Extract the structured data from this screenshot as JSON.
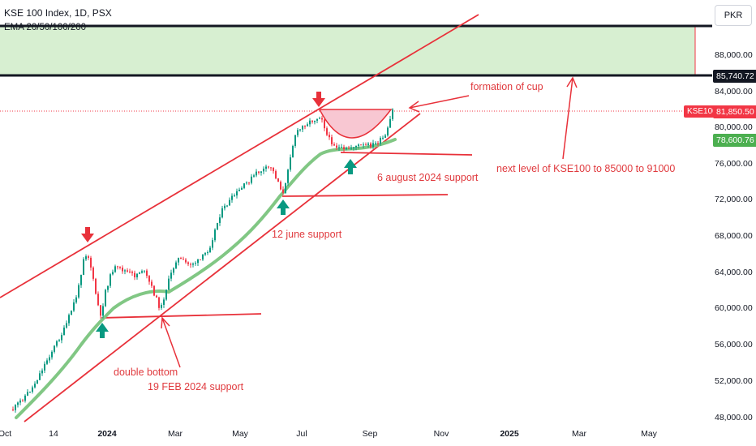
{
  "header": {
    "title": "KSE 100 Index, 1D, PSX",
    "indicator": "EMA 20/50/100/200",
    "currency_button": "PKR"
  },
  "y_axis_labels": [
    "88,000.00",
    "84,000.00",
    "80,000.00",
    "76,000.00",
    "72,000.00",
    "68,000.00",
    "64,000.00",
    "60,000.00",
    "56,000.00",
    "52,000.00",
    "48,000.00"
  ],
  "x_axis_labels": [
    "Oct",
    "14",
    "2024",
    "Mar",
    "May",
    "Jul",
    "Sep",
    "Nov",
    "2025",
    "Mar",
    "May"
  ],
  "price_badges": {
    "resistance": "85,740.72",
    "symbol": "KSE100",
    "last_price": "81,850.50",
    "ema": "78,600.76"
  },
  "annotations": {
    "cup": "formation of cup",
    "target": "next level of KSE100 to 85000 to 91000",
    "aug_support": "6 august 2024 support",
    "june_support": "12 june support",
    "double_bottom": "double bottom",
    "feb_support": "19 FEB 2024 support"
  },
  "colors": {
    "candle_up": "#089981",
    "candle_down": "#f23645",
    "ema": "#81c784",
    "trendline": "#e8313a",
    "target_zone": "#d7efd1",
    "cup_fill": "#f8c7d2",
    "arrow_up": "#089981",
    "arrow_down": "#e8313a"
  },
  "chart_data": {
    "type": "line",
    "title": "KSE 100 Index, 1D, PSX",
    "x": [
      "Oct",
      "14",
      "2024",
      "Mar",
      "May",
      "Jul",
      "Sep"
    ],
    "series": [
      {
        "name": "KSE100",
        "values": [
          48500,
          60500,
          62500,
          64000,
          72000,
          79500,
          81850
        ]
      },
      {
        "name": "EMA 20/50/100/200",
        "values": [
          47000,
          52000,
          59000,
          62000,
          67000,
          76500,
          78600
        ]
      }
    ],
    "ylim": [
      47000,
      92000
    ],
    "last_price": 81850.5,
    "ema_value": 78600.76,
    "target_zone": [
      85740.72,
      91000
    ],
    "grid": false
  }
}
